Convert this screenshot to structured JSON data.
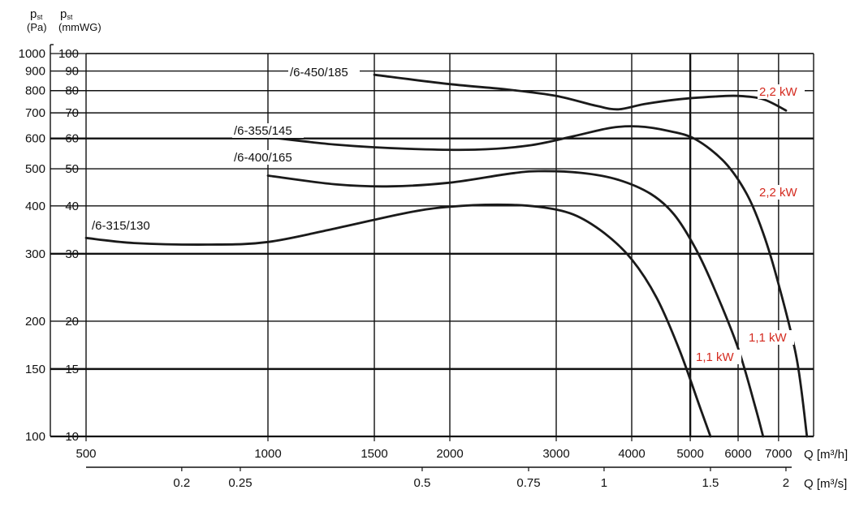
{
  "chart_data": {
    "type": "line",
    "x_scale": "log",
    "y_scale": "log",
    "y_axis_pa": {
      "label_main": "p",
      "label_sub": "st",
      "unit": "(Pa)",
      "range": [
        100,
        1000
      ],
      "ticks": [
        100,
        150,
        200,
        300,
        400,
        500,
        600,
        700,
        800,
        900,
        1000
      ]
    },
    "y_axis_mmwg": {
      "label_main": "p",
      "label_sub": "st",
      "unit": "(mmWG)",
      "ticks": [
        10,
        15,
        20,
        30,
        40,
        50,
        60,
        70,
        80,
        90,
        100
      ]
    },
    "x_axis_m3h": {
      "label": "Q [m³/h]",
      "range": [
        500,
        8000
      ],
      "ticks": [
        500,
        1000,
        1500,
        2000,
        3000,
        4000,
        5000,
        6000,
        7000
      ]
    },
    "x_axis_m3s": {
      "label": "Q [m³/s]",
      "ticks": [
        "0.2",
        "0.25",
        "0.5",
        "0.75",
        "1",
        "1.5",
        "2"
      ]
    },
    "grid": true,
    "series": [
      {
        "name": "/6-315/130",
        "points": [
          [
            500,
            330
          ],
          [
            600,
            320
          ],
          [
            800,
            317
          ],
          [
            1000,
            322
          ],
          [
            1300,
            350
          ],
          [
            1700,
            384
          ],
          [
            2000,
            398
          ],
          [
            2400,
            403
          ],
          [
            2800,
            398
          ],
          [
            3200,
            380
          ],
          [
            3600,
            340
          ],
          [
            4000,
            290
          ],
          [
            4400,
            230
          ],
          [
            4800,
            168
          ],
          [
            5200,
            118
          ],
          [
            5400,
            100
          ]
        ]
      },
      {
        "name": "/6-355/145",
        "points": [
          [
            1000,
            605
          ],
          [
            1300,
            578
          ],
          [
            1700,
            564
          ],
          [
            2200,
            561
          ],
          [
            2700,
            575
          ],
          [
            3200,
            608
          ],
          [
            3700,
            640
          ],
          [
            4100,
            645
          ],
          [
            4600,
            628
          ],
          [
            5100,
            597
          ],
          [
            5700,
            520
          ],
          [
            6200,
            430
          ],
          [
            6600,
            340
          ],
          [
            7000,
            250
          ],
          [
            7500,
            160
          ],
          [
            7800,
            100
          ]
        ]
      },
      {
        "name": "/6-400/165",
        "points": [
          [
            1000,
            480
          ],
          [
            1300,
            455
          ],
          [
            1600,
            450
          ],
          [
            2000,
            460
          ],
          [
            2500,
            485
          ],
          [
            2800,
            493
          ],
          [
            3300,
            488
          ],
          [
            3800,
            468
          ],
          [
            4300,
            430
          ],
          [
            4700,
            380
          ],
          [
            5100,
            310
          ],
          [
            5500,
            240
          ],
          [
            6000,
            170
          ],
          [
            6400,
            120
          ],
          [
            6600,
            100
          ]
        ]
      },
      {
        "name": "/6-450/185",
        "points": [
          [
            1500,
            880
          ],
          [
            2000,
            832
          ],
          [
            2500,
            805
          ],
          [
            3000,
            775
          ],
          [
            3500,
            730
          ],
          [
            3800,
            715
          ],
          [
            4200,
            738
          ],
          [
            4800,
            760
          ],
          [
            5500,
            772
          ],
          [
            6000,
            775
          ],
          [
            6600,
            760
          ],
          [
            7200,
            710
          ]
        ]
      }
    ],
    "power_labels": [
      {
        "text": "2,2 kW",
        "series": "/6-450/185"
      },
      {
        "text": "2,2 kW",
        "series": "/6-355/145"
      },
      {
        "text": "1,1 kW",
        "series": "/6-400/165"
      },
      {
        "text": "1,1 kW",
        "series": "/6-315/130"
      }
    ],
    "colors": {
      "curve": "#1a1a1a",
      "grid": "#111111",
      "power_label": "#d42a1f"
    }
  }
}
